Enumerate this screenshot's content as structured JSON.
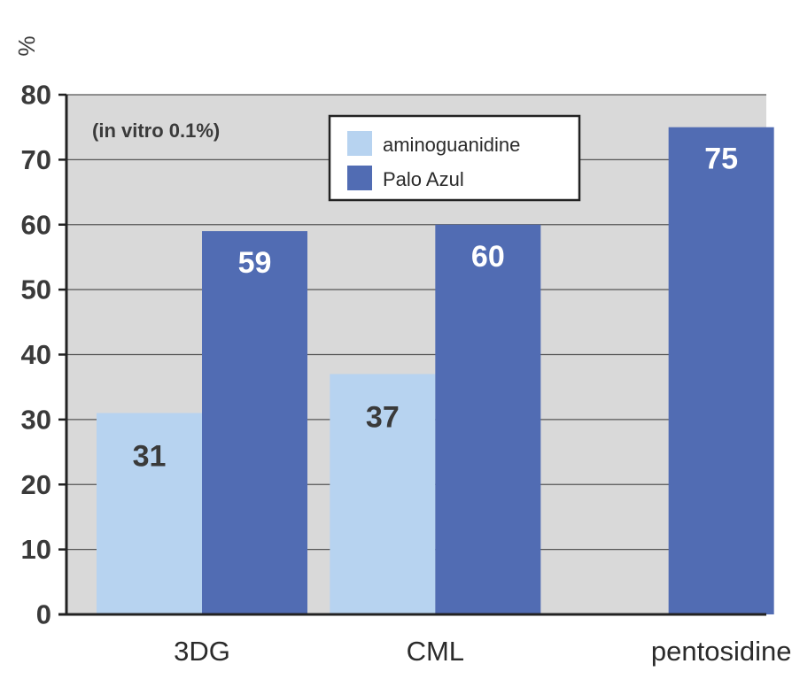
{
  "chart_data": {
    "type": "bar",
    "unit_label": "%",
    "annotation": "(in vitro 0.1%)",
    "categories": [
      "3DG",
      "CML",
      "pentosidine"
    ],
    "series": [
      {
        "name": "aminoguanidine",
        "color": "#b7d3f0",
        "values": [
          31,
          37,
          null
        ]
      },
      {
        "name": "Palo Azul",
        "color": "#516cb3",
        "values": [
          59,
          60,
          75
        ]
      }
    ],
    "data_labels": [
      [
        "31",
        "37",
        ""
      ],
      [
        "59",
        "60",
        "75"
      ]
    ],
    "ylim": [
      0,
      80
    ],
    "yticks": [
      0,
      10,
      20,
      30,
      40,
      50,
      60,
      70,
      80
    ],
    "grid": true,
    "legend_position": "top-center",
    "background_color": "#d9d9d9"
  }
}
